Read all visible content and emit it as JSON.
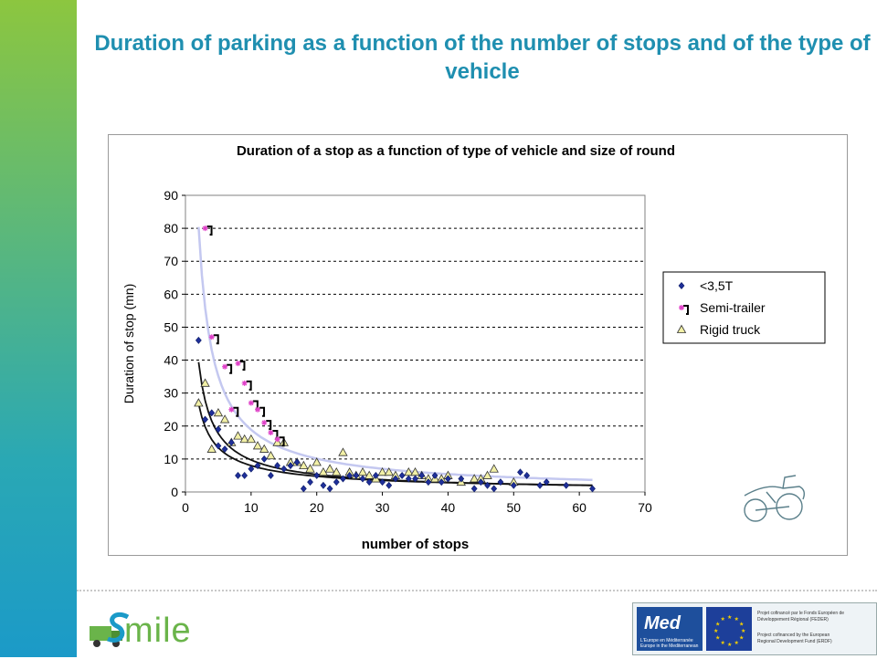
{
  "slide": {
    "title": "Duration of parking as a function of the number of stops and of the type of vehicle"
  },
  "logos": {
    "smile_text": "mile",
    "med_text": "Med",
    "med_caption": "L'Europe en Méditerranée\nEurope in the Mediterranean",
    "funding_fr": "Projet cofinancé par le Fonds Européen de Développement Régional (FEDER)",
    "funding_en": "Project cofinanced by the European Regional Development Fund (ERDF)"
  },
  "colors": {
    "side_bar_top": "#8cc63f",
    "side_bar_bottom": "#1b9ac8",
    "title": "#1f8fb0",
    "series_small": "#1f2f99",
    "series_semi": "#e040c8",
    "series_rigid_fill": "#f2f0a6",
    "trend_semi": "#c4c8f0",
    "trend_dark": "#111111"
  },
  "chart_data": {
    "type": "scatter",
    "title": "Duration of a stop as a function of type of vehicle and size of round",
    "xlabel": "number of stops",
    "ylabel": "Duration of stop (mn)",
    "xlim": [
      0,
      70
    ],
    "ylim": [
      0,
      90
    ],
    "x_ticks": [
      "0",
      "10",
      "20",
      "30",
      "40",
      "50",
      "60",
      "70"
    ],
    "y_ticks": [
      "0",
      "10",
      "20",
      "30",
      "40",
      "50",
      "60",
      "70",
      "80",
      "90"
    ],
    "grid": "horizontal-dashed",
    "legend_position": "right",
    "series": [
      {
        "name": "<3,5T",
        "marker": "diamond",
        "points": [
          [
            2,
            46
          ],
          [
            3,
            22
          ],
          [
            4,
            24
          ],
          [
            5,
            14
          ],
          [
            5,
            19
          ],
          [
            6,
            13
          ],
          [
            7,
            15
          ],
          [
            8,
            5
          ],
          [
            9,
            5
          ],
          [
            10,
            7
          ],
          [
            11,
            8
          ],
          [
            12,
            10
          ],
          [
            13,
            5
          ],
          [
            14,
            8
          ],
          [
            15,
            7
          ],
          [
            16,
            8
          ],
          [
            17,
            9
          ],
          [
            18,
            1
          ],
          [
            19,
            3
          ],
          [
            20,
            5
          ],
          [
            21,
            2
          ],
          [
            22,
            1
          ],
          [
            23,
            3
          ],
          [
            24,
            4
          ],
          [
            25,
            5
          ],
          [
            26,
            5
          ],
          [
            27,
            4
          ],
          [
            28,
            3
          ],
          [
            29,
            5
          ],
          [
            30,
            3
          ],
          [
            31,
            2
          ],
          [
            32,
            4
          ],
          [
            33,
            5
          ],
          [
            34,
            4
          ],
          [
            35,
            4
          ],
          [
            36,
            5
          ],
          [
            37,
            3
          ],
          [
            38,
            5
          ],
          [
            39,
            3
          ],
          [
            40,
            4
          ],
          [
            42,
            4
          ],
          [
            44,
            1
          ],
          [
            45,
            3
          ],
          [
            46,
            2
          ],
          [
            47,
            1
          ],
          [
            48,
            3
          ],
          [
            50,
            2
          ],
          [
            51,
            6
          ],
          [
            52,
            5
          ],
          [
            54,
            2
          ],
          [
            55,
            3
          ],
          [
            58,
            2
          ],
          [
            62,
            1
          ]
        ]
      },
      {
        "name": "Semi-trailer",
        "marker": "asterisk",
        "points": [
          [
            3,
            80
          ],
          [
            4,
            47
          ],
          [
            6,
            38
          ],
          [
            7,
            25
          ],
          [
            8,
            39
          ],
          [
            9,
            33
          ],
          [
            10,
            27
          ],
          [
            11,
            25
          ],
          [
            12,
            21
          ],
          [
            13,
            18
          ],
          [
            14,
            16
          ]
        ]
      },
      {
        "name": "Rigid truck",
        "marker": "triangle",
        "points": [
          [
            2,
            27
          ],
          [
            3,
            33
          ],
          [
            4,
            13
          ],
          [
            5,
            24
          ],
          [
            6,
            22
          ],
          [
            7,
            15
          ],
          [
            8,
            17
          ],
          [
            9,
            16
          ],
          [
            10,
            16
          ],
          [
            11,
            14
          ],
          [
            12,
            13
          ],
          [
            13,
            11
          ],
          [
            14,
            15
          ],
          [
            15,
            15
          ],
          [
            16,
            9
          ],
          [
            17,
            9
          ],
          [
            18,
            8
          ],
          [
            19,
            7
          ],
          [
            20,
            9
          ],
          [
            21,
            6
          ],
          [
            22,
            7
          ],
          [
            23,
            6
          ],
          [
            24,
            12
          ],
          [
            25,
            6
          ],
          [
            26,
            5
          ],
          [
            27,
            6
          ],
          [
            28,
            5
          ],
          [
            29,
            4
          ],
          [
            30,
            6
          ],
          [
            31,
            6
          ],
          [
            32,
            5
          ],
          [
            34,
            6
          ],
          [
            35,
            6
          ],
          [
            36,
            5
          ],
          [
            37,
            4
          ],
          [
            38,
            4
          ],
          [
            39,
            4
          ],
          [
            40,
            5
          ],
          [
            42,
            3
          ],
          [
            44,
            4
          ],
          [
            45,
            4
          ],
          [
            46,
            5
          ],
          [
            47,
            7
          ],
          [
            50,
            3
          ]
        ]
      }
    ],
    "trendlines": [
      {
        "series": "Semi-trailer",
        "a": 150,
        "b": -0.9,
        "x_range": [
          2,
          62
        ]
      },
      {
        "series": "Rigid truck",
        "a": 72,
        "b": -0.87,
        "x_range": [
          2,
          62
        ]
      },
      {
        "series": "<3,5T",
        "a": 45,
        "b": -0.75,
        "x_range": [
          2,
          62
        ]
      }
    ]
  }
}
